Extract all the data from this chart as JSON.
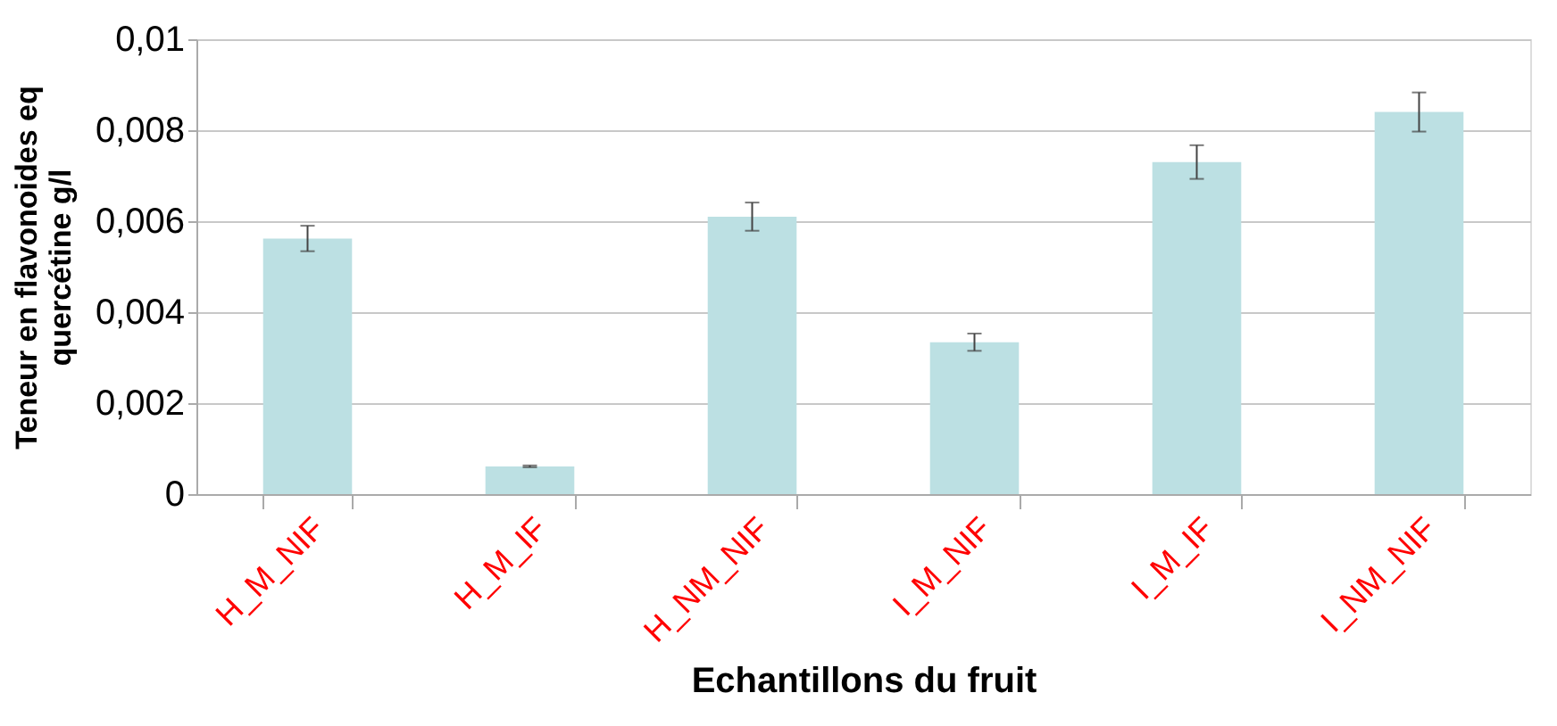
{
  "chart_data": {
    "type": "bar",
    "xlabel": "Echantillons du fruit",
    "ylabel": "Teneur en flavonoides eq quercétine g/l",
    "categories": [
      "H_M_NIF",
      "H_M_IF",
      "H_NM_NIF",
      "I_M_NIF",
      "I_M_IF",
      "I_NM_NIF"
    ],
    "values": [
      0.00562,
      0.00061,
      0.0061,
      0.00334,
      0.0073,
      0.0084
    ],
    "errors": [
      0.00028,
      2e-05,
      0.00031,
      0.00019,
      0.00037,
      0.00043
    ],
    "color": "#bce0e3",
    "ylim": [
      0,
      0.01
    ],
    "yticks": [
      0,
      {
        "value": 0.002,
        "label": "0,002"
      },
      {
        "value": 0.004,
        "label": "0,004"
      },
      {
        "value": 0.006,
        "label": "0,006"
      },
      {
        "value": 0.008,
        "label": "0,008"
      },
      {
        "value": 0.01,
        "label": "0,01"
      }
    ],
    "grid": "y"
  }
}
